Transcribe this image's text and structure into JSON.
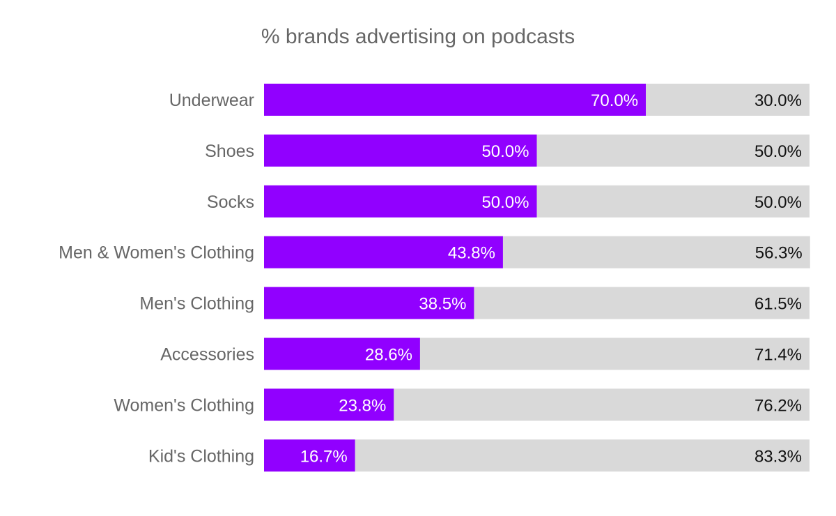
{
  "chart_data": {
    "type": "bar",
    "orientation": "horizontal",
    "stacked": true,
    "title": "% brands advertising on podcasts",
    "categories": [
      "Underwear",
      "Shoes",
      "Socks",
      "Men & Women's Clothing",
      "Men's Clothing",
      "Accessories",
      "Women's Clothing",
      "Kid's Clothing"
    ],
    "series": [
      {
        "color": "#9100ff",
        "values": [
          70.0,
          50.0,
          50.0,
          43.8,
          38.5,
          28.6,
          23.8,
          16.7
        ],
        "labels": [
          "70.0%",
          "50.0%",
          "50.0%",
          "43.8%",
          "38.5%",
          "28.6%",
          "23.8%",
          "16.7%"
        ]
      },
      {
        "color": "#d9d9d9",
        "values": [
          30.0,
          50.0,
          50.0,
          56.3,
          61.5,
          71.4,
          76.2,
          83.3
        ],
        "labels": [
          "30.0%",
          "50.0%",
          "50.0%",
          "56.3%",
          "61.5%",
          "71.4%",
          "76.2%",
          "83.3%"
        ]
      }
    ],
    "xlim": [
      0,
      100
    ],
    "grid": false,
    "legend": "none"
  }
}
